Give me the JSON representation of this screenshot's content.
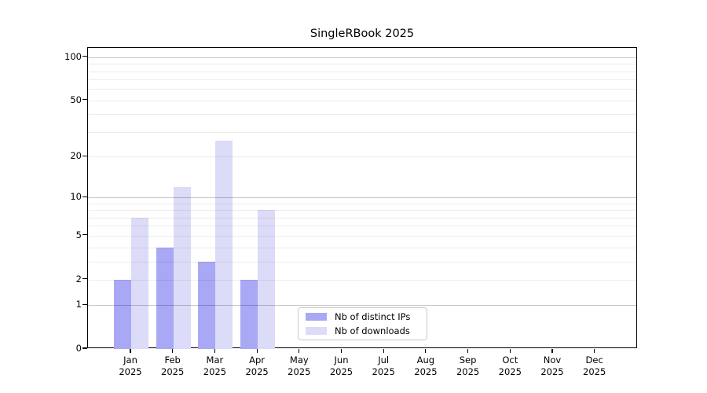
{
  "title": "SingleRBook 2025",
  "legend": {
    "items": [
      {
        "label": "Nb of distinct IPs",
        "color": "#a8a8f5"
      },
      {
        "label": "Nb of downloads",
        "color": "#dcdcf8"
      }
    ]
  },
  "chart_data": {
    "type": "bar",
    "title": "SingleRBook 2025",
    "categories": [
      "Jan 2025",
      "Feb 2025",
      "Mar 2025",
      "Apr 2025",
      "May 2025",
      "Jun 2025",
      "Jul 2025",
      "Aug 2025",
      "Sep 2025",
      "Oct 2025",
      "Nov 2025",
      "Dec 2025"
    ],
    "series": [
      {
        "name": "Nb of distinct IPs",
        "color": "#a8a8f5",
        "values": [
          2,
          4,
          3,
          2,
          0,
          0,
          0,
          0,
          0,
          0,
          0,
          0
        ]
      },
      {
        "name": "Nb of downloads",
        "color": "#dcdcf8",
        "values": [
          7,
          12,
          26,
          8,
          0,
          0,
          0,
          0,
          0,
          0,
          0,
          0
        ]
      }
    ],
    "xlabel": "",
    "ylabel": "",
    "yscale": "log1p",
    "ylim": [
      0,
      116
    ],
    "yticks": [
      0,
      1,
      2,
      5,
      10,
      20,
      50,
      100
    ],
    "minor_gridlines": [
      2,
      3,
      4,
      5,
      6,
      7,
      8,
      9,
      20,
      30,
      40,
      50,
      60,
      70,
      80,
      90
    ],
    "major_gridlines": [
      1,
      10,
      100
    ],
    "grid": "on",
    "legend_position": "lower center"
  }
}
